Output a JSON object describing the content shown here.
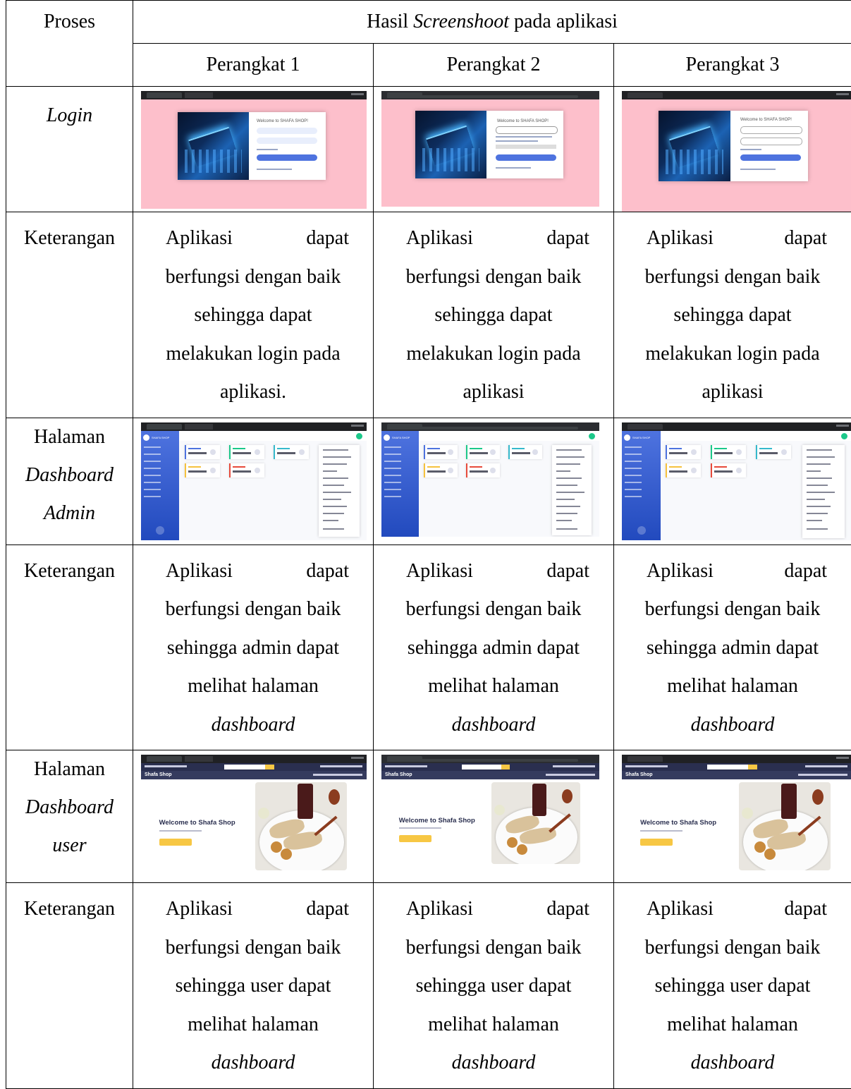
{
  "header": {
    "col1": "Proses",
    "col2_prefix": "Hasil ",
    "col2_italic": "Screenshoot",
    "col2_suffix": " pada aplikasi",
    "devices": [
      "Perangkat 1",
      "Perangkat 2",
      "Perangkat 3"
    ]
  },
  "rows": {
    "login": {
      "label": "Login",
      "screens": {
        "title": "Welcome to SHAFA SHOP!"
      }
    },
    "ket1": {
      "label": "Keterangan",
      "d1": [
        "Aplikasi",
        "dapat",
        "berfungsi dengan baik",
        "sehingga dapat",
        "melakukan login pada",
        "aplikasi."
      ],
      "d2": [
        "Aplikasi",
        "dapat",
        "berfungsi dengan baik",
        "sehingga dapat",
        "melakukan login pada",
        "aplikasi"
      ],
      "d3": [
        "Aplikasi",
        "dapat",
        "berfungsi dengan baik",
        "sehingga dapat",
        "melakukan login pada",
        "aplikasi"
      ]
    },
    "admin": {
      "label_1": "Halaman",
      "label_2": "Dashboard",
      "label_3": "Admin",
      "brand": "SHAFA SHOP"
    },
    "ket2": {
      "label": "Keterangan",
      "lines": [
        "Aplikasi",
        "dapat",
        "berfungsi dengan baik",
        "sehingga admin dapat",
        "melihat halaman",
        "dashboard"
      ]
    },
    "user": {
      "label_1": "Halaman",
      "label_2": "Dashboard",
      "label_3": "user",
      "brand": "Shafa Shop",
      "welcome": "Welcome to Shafa Shop"
    },
    "ket3": {
      "label": "Keterangan",
      "lines": [
        "Aplikasi",
        "dapat",
        "berfungsi dengan baik",
        "sehingga user dapat",
        "melihat halaman",
        "dashboard"
      ]
    }
  },
  "colors": {
    "login_bg": "#fdbfcb",
    "sidebar": "#4e73df",
    "user_nav": "#2a2f4f",
    "accent_yellow": "#f7c744"
  }
}
